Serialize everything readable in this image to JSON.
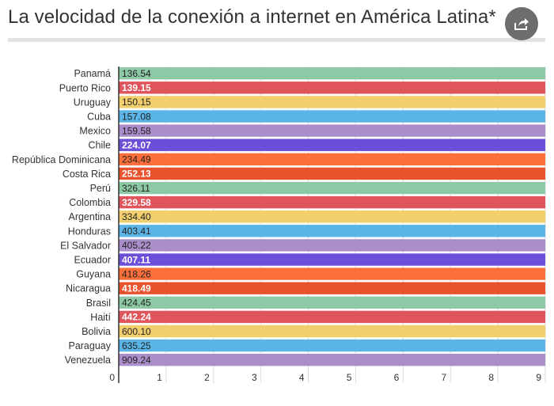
{
  "header": {
    "title": "La velocidad de la conexión a internet en América Latina*",
    "share_icon": "share-icon"
  },
  "colors": {
    "palette": [
      "#8ec9a6",
      "#e0545b",
      "#f2cf6c",
      "#5ab5e6",
      "#aa8ec9",
      "#6a4fd8",
      "#fd6f3a",
      "#e8522c"
    ],
    "label_dark": "#222222",
    "label_light": "#ffffff",
    "axis": "#333333",
    "grid": "#d9d9d9"
  },
  "chart_data": {
    "type": "bar",
    "orientation": "horizontal",
    "title": "La velocidad de la conexión a internet en América Latina*",
    "xlabel": "",
    "ylabel": "",
    "xlim": [
      0,
      9
    ],
    "ticks": [
      "0",
      "1",
      "2",
      "3",
      "4",
      "5",
      "6",
      "7",
      "8",
      "9"
    ],
    "grid": true,
    "bars_clipped_at_axis_max": true,
    "categories": [
      "Panamá",
      "Puerto Rico",
      "Uruguay",
      "Cuba",
      "Mexico",
      "Chile",
      "República Dominicana",
      "Costa Rica",
      "Perú",
      "Colombia",
      "Argentina",
      "Honduras",
      "El Salvador",
      "Ecuador",
      "Guyana",
      "Nicaragua",
      "Brasil",
      "Haití",
      "Bolivia",
      "Paraguay",
      "Venezuela"
    ],
    "values": [
      136.54,
      139.15,
      150.15,
      157.08,
      159.58,
      224.07,
      234.49,
      252.13,
      326.11,
      329.58,
      334.4,
      403.41,
      405.22,
      407.11,
      418.26,
      418.49,
      424.45,
      442.24,
      600.1,
      635.25,
      909.24
    ],
    "value_labels": [
      "136.54",
      "139.15",
      "150.15",
      "157.08",
      "159.58",
      "224.07",
      "234.49",
      "252.13",
      "326.11",
      "329.58",
      "334.40",
      "403.41",
      "405.22",
      "407.11",
      "418.26",
      "418.49",
      "424.45",
      "442.24",
      "600.10",
      "635.25",
      "909.24"
    ]
  }
}
